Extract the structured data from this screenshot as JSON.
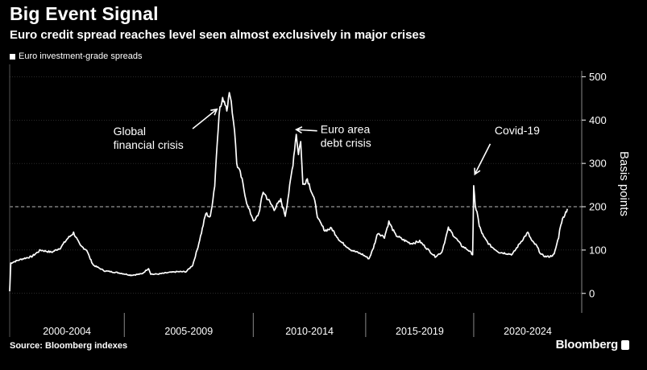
{
  "header": {
    "title": "Big Event Signal",
    "subtitle": "Euro credit spread reaches level seen almost exclusively in major crises"
  },
  "footer": {
    "source": "Source: Bloomberg indexes",
    "brand": "Bloomberg"
  },
  "chart_data": {
    "type": "line",
    "ylabel": "Basis points",
    "ylim": [
      -45,
      510
    ],
    "xlim": [
      1999.0,
      2024.95
    ],
    "yticks": [
      0,
      100,
      200,
      300,
      400,
      500
    ],
    "reference_line": 200,
    "grid": true,
    "legend_position": "top-left",
    "colors": {
      "background": "#000000",
      "line": "#ffffff",
      "grid": "#555555"
    },
    "x_periods": [
      {
        "label": "2000-2004",
        "start": 1999.0,
        "end": 2004.2
      },
      {
        "label": "2005-2009",
        "start": 2004.2,
        "end": 2010.05
      },
      {
        "label": "2010-2014",
        "start": 2010.05,
        "end": 2015.15
      },
      {
        "label": "2015-2019",
        "start": 2015.15,
        "end": 2020.05
      },
      {
        "label": "2020-2024",
        "start": 2020.05,
        "end": 2024.95
      }
    ],
    "annotations": [
      {
        "lines": [
          "Global",
          "financial crisis"
        ],
        "x": 2003.7,
        "y": 365,
        "arrow_from": [
          2007.3,
          380
        ],
        "arrow_to": [
          2008.4,
          425
        ]
      },
      {
        "lines": [
          "Euro area",
          "debt crisis"
        ],
        "x": 2013.1,
        "y": 370,
        "arrow_from": [
          2012.95,
          375
        ],
        "arrow_to": [
          2012.0,
          378
        ]
      },
      {
        "lines": [
          "Covid-19"
        ],
        "x": 2021.0,
        "y": 367,
        "arrow_from": [
          2020.8,
          345
        ],
        "arrow_to": [
          2020.1,
          275
        ]
      }
    ],
    "series": [
      {
        "name": "Euro investment-grade spreads",
        "x": [
          1999.0,
          1999.05,
          1999.3,
          1999.6,
          2000.0,
          2000.4,
          2000.9,
          2001.3,
          2001.6,
          2001.9,
          2002.2,
          2002.5,
          2002.65,
          2002.8,
          2003.0,
          2003.3,
          2003.6,
          2004.0,
          2004.5,
          2005.0,
          2005.3,
          2005.4,
          2005.5,
          2005.8,
          2006.2,
          2006.6,
          2007.0,
          2007.3,
          2007.5,
          2007.7,
          2007.9,
          2008.1,
          2008.3,
          2008.5,
          2008.7,
          2008.85,
          2009.0,
          2009.1,
          2009.2,
          2009.3,
          2009.5,
          2009.8,
          2010.1,
          2010.3,
          2010.5,
          2010.8,
          2011.0,
          2011.3,
          2011.5,
          2011.7,
          2011.85,
          2012.0,
          2012.1,
          2012.2,
          2012.3,
          2012.5,
          2012.8,
          2013.0,
          2013.3,
          2013.6,
          2014.0,
          2014.5,
          2015.0,
          2015.3,
          2015.5,
          2015.7,
          2016.0,
          2016.2,
          2016.5,
          2016.8,
          2017.2,
          2017.6,
          2018.0,
          2018.3,
          2018.6,
          2018.9,
          2019.2,
          2019.5,
          2019.8,
          2020.0,
          2020.05,
          2020.12,
          2020.2,
          2020.3,
          2020.5,
          2020.8,
          2021.2,
          2021.8,
          2022.2,
          2022.5,
          2022.7,
          2022.9,
          2023.1,
          2023.3,
          2023.5,
          2023.7,
          2023.9,
          2024.0,
          2024.15,
          2024.3
        ],
        "values": [
          5,
          70,
          75,
          80,
          85,
          100,
          95,
          105,
          125,
          140,
          110,
          100,
          80,
          65,
          60,
          52,
          50,
          47,
          42,
          45,
          58,
          45,
          44,
          45,
          48,
          50,
          50,
          65,
          100,
          140,
          185,
          175,
          250,
          420,
          450,
          430,
          465,
          420,
          380,
          300,
          270,
          200,
          165,
          185,
          235,
          210,
          195,
          215,
          180,
          245,
          300,
          370,
          320,
          355,
          250,
          265,
          220,
          170,
          145,
          150,
          120,
          100,
          90,
          80,
          105,
          140,
          130,
          165,
          135,
          125,
          115,
          120,
          100,
          85,
          95,
          150,
          130,
          110,
          100,
          90,
          245,
          200,
          190,
          155,
          130,
          110,
          95,
          90,
          120,
          140,
          120,
          110,
          90,
          85,
          85,
          90,
          130,
          160,
          180,
          195
        ]
      }
    ]
  }
}
